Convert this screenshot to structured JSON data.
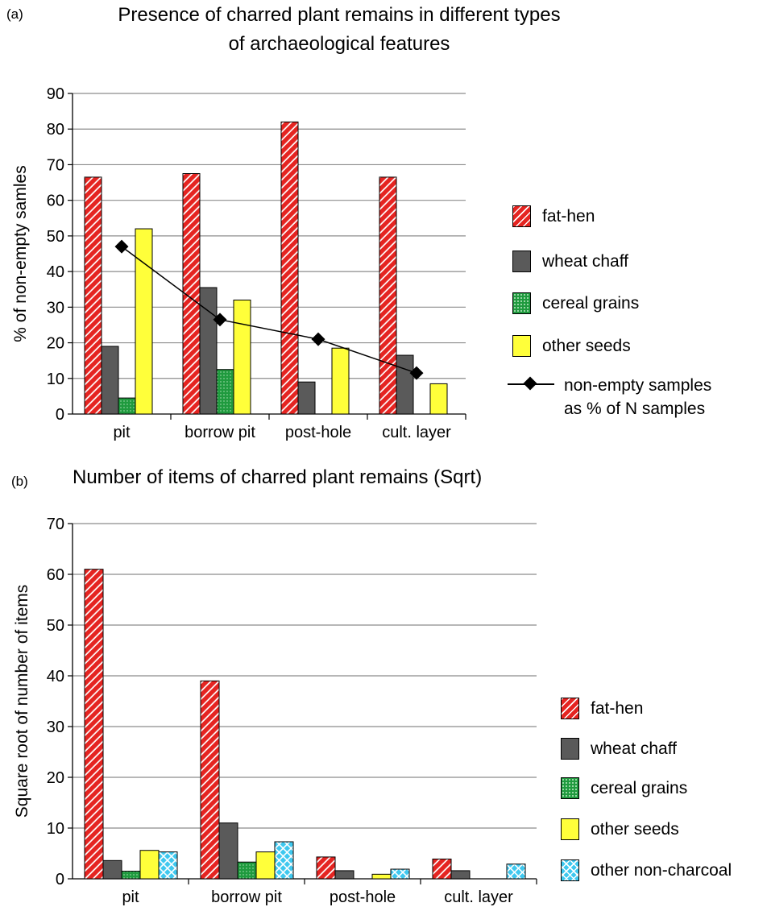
{
  "colors": {
    "fat_hen": "#e52421",
    "wheat_chaff": "#5a5a5a",
    "cereal_grains": "#1f9a3e",
    "other_seeds": "#ffff3a",
    "other_non_charcoal": "#3ec8ef",
    "grid": "#8c8c8c"
  },
  "panel_a": {
    "letter": "(a)",
    "title_line1": "Presence of charred plant remains in different types",
    "title_line2": "of archaeological features",
    "legend": {
      "fat_hen": "fat-hen",
      "wheat_chaff": "wheat chaff",
      "cereal_grains": "cereal grains",
      "other_seeds": "other seeds",
      "line_line1": "non-empty samples",
      "line_line2": "as % of N samples"
    }
  },
  "panel_b": {
    "letter": "(b)",
    "title": "Number of items of charred plant remains  (Sqrt)",
    "legend": {
      "fat_hen": "fat-hen",
      "wheat_chaff": "wheat chaff",
      "cereal_grains": "cereal grains",
      "other_seeds": "other seeds",
      "other_non_charcoal": "other non-charcoal"
    }
  },
  "chart_data": [
    {
      "type": "bar",
      "title": "Presence of charred plant remains in different types of archaeological features",
      "ylabel": "% of non-empty samles",
      "xlabel": "",
      "ylim": [
        0,
        90
      ],
      "yticks": [
        0,
        10,
        20,
        30,
        40,
        50,
        60,
        70,
        80,
        90
      ],
      "grid": true,
      "legend_position": "right",
      "categories": [
        "pit",
        "borrow pit",
        "post-hole",
        "cult. layer"
      ],
      "series": [
        {
          "name": "fat-hen",
          "values": [
            66.5,
            67.5,
            82,
            66.5
          ]
        },
        {
          "name": "wheat chaff",
          "values": [
            19,
            35.5,
            9,
            16.5
          ]
        },
        {
          "name": "cereal grains",
          "values": [
            4.5,
            12.5,
            0,
            0
          ]
        },
        {
          "name": "other seeds",
          "values": [
            52,
            32,
            18.5,
            8.5
          ]
        }
      ],
      "line_series": {
        "name": "non-empty samples as % of N samples",
        "values": [
          47,
          26.5,
          21,
          11.5
        ]
      }
    },
    {
      "type": "bar",
      "title": "Number of items of charred plant remains  (Sqrt)",
      "ylabel": "Square root of number of items",
      "xlabel": "",
      "ylim": [
        0,
        70
      ],
      "yticks": [
        0,
        10,
        20,
        30,
        40,
        50,
        60,
        70
      ],
      "grid": true,
      "legend_position": "right",
      "categories": [
        "pit",
        "borrow pit",
        "post-hole",
        "cult. layer"
      ],
      "series": [
        {
          "name": "fat-hen",
          "values": [
            61,
            39,
            4.3,
            3.9
          ]
        },
        {
          "name": "wheat chaff",
          "values": [
            3.6,
            11,
            1.6,
            1.6
          ]
        },
        {
          "name": "cereal grains",
          "values": [
            1.5,
            3.3,
            0,
            0
          ]
        },
        {
          "name": "other seeds",
          "values": [
            5.6,
            5.3,
            0.9,
            0
          ]
        },
        {
          "name": "other non-charcoal",
          "values": [
            5.3,
            7.3,
            1.9,
            2.9
          ]
        }
      ]
    }
  ]
}
